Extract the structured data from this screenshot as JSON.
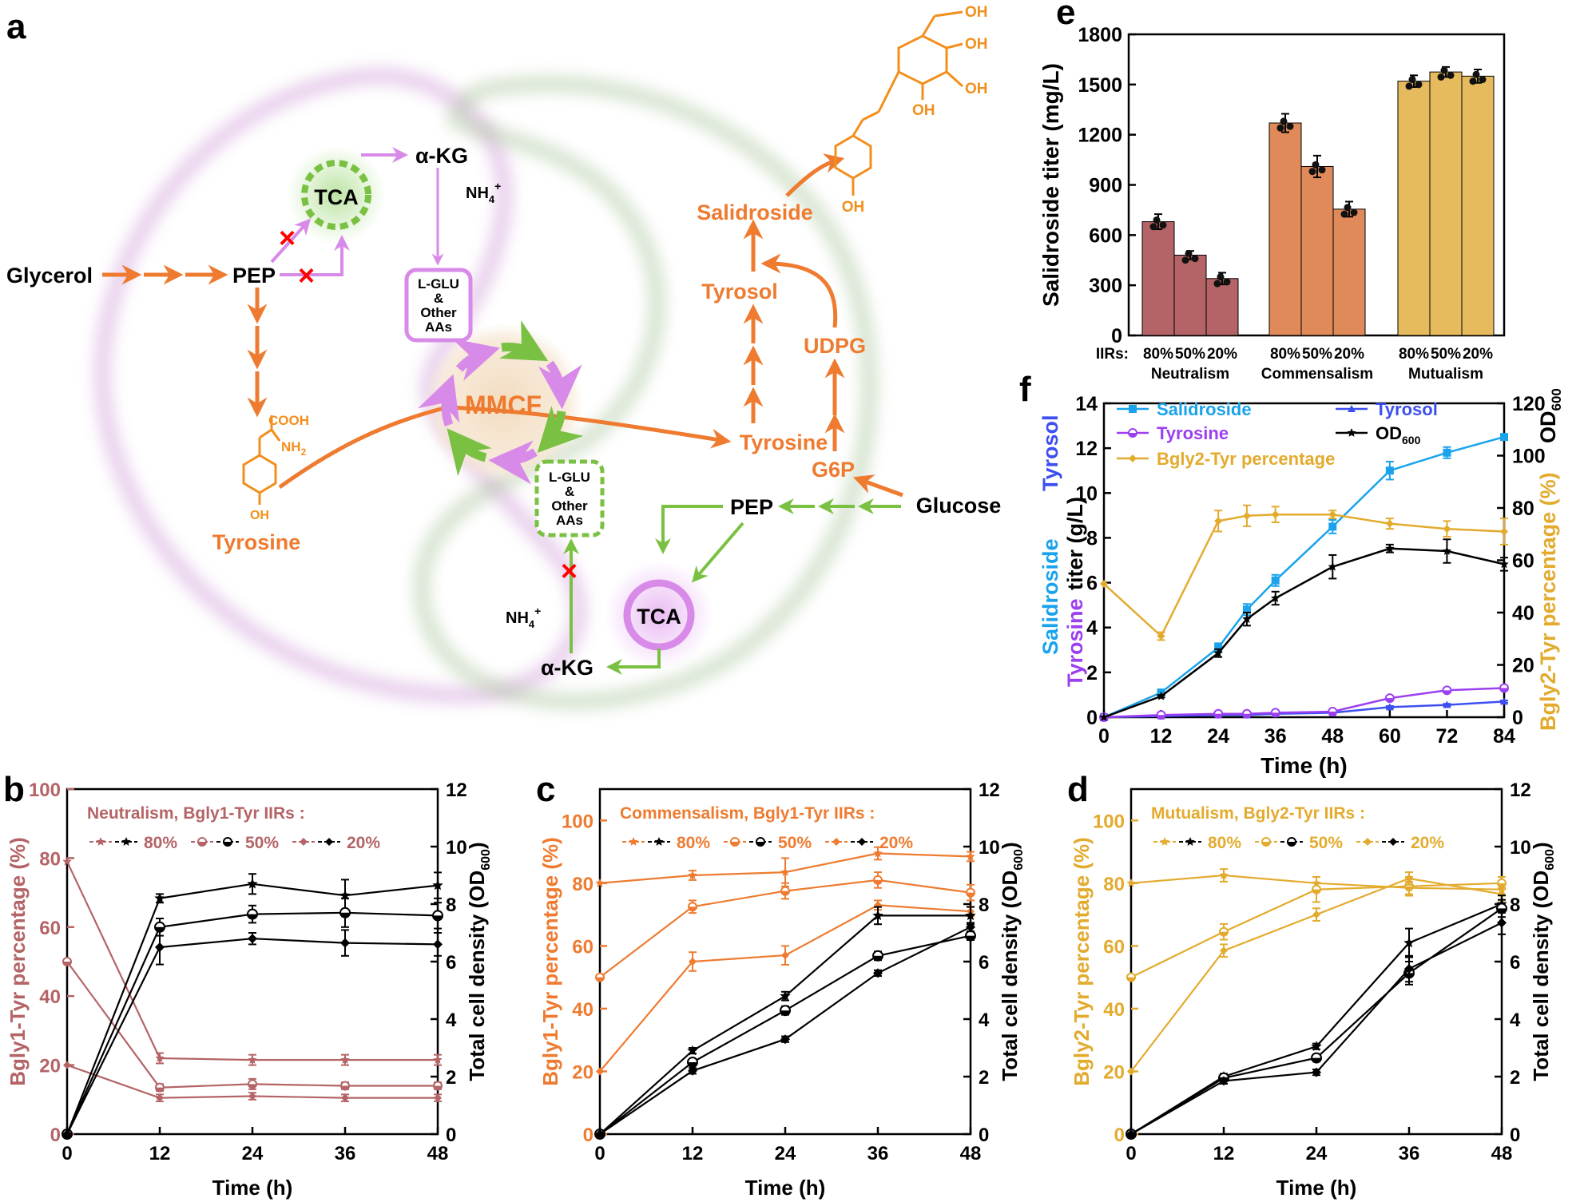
{
  "colors": {
    "orange": "#ee7b30",
    "orange_light": "#f28f1c",
    "green": "#7ac143",
    "pink": "#d88ae8",
    "rose": "#b46466",
    "gold": "#e3ab2e",
    "blue_sal": "#1aa3ec",
    "purple_tyr": "#9b3ff0",
    "blue_tyrosol": "#3d4ff0",
    "black": "#000000",
    "red_x": "#ff0000"
  },
  "panel_a": {
    "letter": "a",
    "glycerol": "Glycerol",
    "pep_left": "PEP",
    "tca_left": "TCA",
    "akg_top": "α-KG",
    "nh4_top": "NH",
    "nh4_sup": "4",
    "plus": "+",
    "lglu_top": [
      "L-GLU",
      "&",
      "Other",
      "AAs"
    ],
    "cooh": "COOH",
    "nh2": "NH",
    "nh2_sub": "2",
    "oh": "OH",
    "tyrosine_left": "Tyrosine",
    "mmcf": "MMCF",
    "tyrosine_right": "Tyrosine",
    "tyrosol": "Tyrosol",
    "salidroside": "Salidroside",
    "udpg": "UDPG",
    "g6p": "G6P",
    "glucose": "Glucose",
    "pep_right": "PEP",
    "tca_right": "TCA",
    "akg_bottom": "α-KG",
    "nh4_bottom": "NH",
    "lglu_bottom": [
      "L-GLU",
      "&",
      "Other",
      "AAs"
    ],
    "cross": "×"
  },
  "chart_data": [
    {
      "id": "e",
      "type": "bar",
      "letter": "e",
      "ylabel": "Salidroside titer (mg/L)",
      "ylim": [
        0,
        1800
      ],
      "yticks": [
        "0",
        "300",
        "600",
        "900",
        "1200",
        "1500",
        "1800"
      ],
      "iir_label": "IIRs:",
      "groups": [
        {
          "name": "Neutralism",
          "labels": [
            "80%",
            "50%",
            "20%"
          ],
          "values": [
            680,
            480,
            340
          ],
          "errors": [
            45,
            25,
            35
          ],
          "color": "#b46466"
        },
        {
          "name": "Commensalism",
          "labels": [
            "80%",
            "50%",
            "20%"
          ],
          "values": [
            1270,
            1010,
            755
          ],
          "errors": [
            55,
            65,
            45
          ],
          "color": "#e08a5a"
        },
        {
          "name": "Mutualism",
          "labels": [
            "80%",
            "50%",
            "20%"
          ],
          "values": [
            1520,
            1575,
            1550
          ],
          "errors": [
            35,
            30,
            40
          ],
          "color": "#e6bb5e"
        }
      ]
    },
    {
      "id": "f",
      "type": "line",
      "letter": "f",
      "xlabel": "Time (h)",
      "xlim": [
        0,
        84
      ],
      "xticks": [
        "0",
        "12",
        "24",
        "36",
        "48",
        "60",
        "72",
        "84"
      ],
      "ylim": [
        0,
        14
      ],
      "yticks": [
        "0",
        "2",
        "4",
        "6",
        "8",
        "10",
        "12",
        "14"
      ],
      "ylim2": [
        0,
        120
      ],
      "yticks2": [
        "0",
        "20",
        "40",
        "60",
        "80",
        "100",
        "120"
      ],
      "ylabel_parts": [
        "Salidroside",
        "Tyrosol",
        "Tyrosine",
        "titer (g/L)"
      ],
      "ylabel2": "Bgly2-Tyr percentage (%)",
      "ylabel2_od": "OD",
      "ylabel2_od_sub": "600",
      "legend": [
        "Salidroside",
        "Tyrosol",
        "Tyrosine",
        "OD",
        "600",
        "Bgly2-Tyr percentage"
      ],
      "x": [
        0,
        12,
        24,
        30,
        36,
        48,
        60,
        72,
        84
      ],
      "series": [
        {
          "name": "Salidroside",
          "axis": "left",
          "color": "#1aa3ec",
          "marker": "square",
          "values": [
            0,
            1.1,
            3.1,
            4.8,
            6.1,
            8.5,
            11.0,
            11.8,
            12.5
          ],
          "errors": [
            0,
            0.1,
            0.2,
            0.25,
            0.25,
            0.3,
            0.4,
            0.25,
            0.1
          ]
        },
        {
          "name": "Tyrosol",
          "axis": "left",
          "color": "#3d4ff0",
          "marker": "triangle",
          "values": [
            0,
            0.05,
            0.1,
            0.1,
            0.15,
            0.2,
            0.45,
            0.55,
            0.7
          ],
          "errors": [
            0,
            0,
            0,
            0,
            0,
            0,
            0.05,
            0.05,
            0.05
          ]
        },
        {
          "name": "Tyrosine",
          "axis": "left",
          "color": "#9b3ff0",
          "marker": "circle",
          "values": [
            0,
            0.1,
            0.15,
            0.15,
            0.2,
            0.25,
            0.85,
            1.2,
            1.3
          ],
          "errors": [
            0,
            0,
            0,
            0,
            0,
            0,
            0.05,
            0.05,
            0.05
          ]
        },
        {
          "name": "OD600",
          "axis": "right",
          "color": "#000000",
          "marker": "star",
          "values": [
            0,
            8,
            24.5,
            37.5,
            45.5,
            57.5,
            64.5,
            63.5,
            58.5
          ],
          "errors": [
            0,
            0.5,
            1.5,
            2.5,
            2.5,
            4.5,
            1.5,
            4.5,
            2.5
          ]
        },
        {
          "name": "Bgly2-Tyr percentage",
          "axis": "right",
          "color": "#e3ab2e",
          "marker": "diamond",
          "values": [
            51,
            31,
            75,
            77,
            77.5,
            77.5,
            74,
            72,
            71
          ],
          "errors": [
            0,
            1.5,
            4,
            4,
            3,
            1.5,
            2,
            3,
            5
          ]
        }
      ]
    },
    {
      "id": "b",
      "type": "line",
      "letter": "b",
      "title": "Neutralism, Bgly1-Tyr IIRs :",
      "legend_labels": [
        "80%",
        "50%",
        "20%"
      ],
      "color": "#b46466",
      "xlabel": "Time (h)",
      "x": [
        0,
        12,
        24,
        36,
        48
      ],
      "xticks": [
        "0",
        "12",
        "24",
        "36",
        "48"
      ],
      "ylim": [
        0,
        100
      ],
      "yticks": [
        "0",
        "20",
        "40",
        "60",
        "80",
        "100"
      ],
      "ylim2": [
        0,
        12
      ],
      "yticks2": [
        "0",
        "2",
        "4",
        "6",
        "8",
        "10",
        "12"
      ],
      "ylabel": "Bgly1-Tyr percentage (%)",
      "ylabel2": "Total cell density (OD",
      "ylabel2_sub": "600",
      "ylabel2_end": ")",
      "percentage": [
        {
          "name": "80%",
          "marker": "star",
          "values": [
            79,
            22,
            21.5,
            21.5,
            21.5
          ],
          "errors": [
            0,
            1.5,
            1.5,
            1.5,
            1.5
          ]
        },
        {
          "name": "50%",
          "marker": "circle",
          "values": [
            50,
            13.5,
            14.5,
            14,
            14
          ],
          "errors": [
            0,
            1,
            1.5,
            1,
            1
          ]
        },
        {
          "name": "20%",
          "marker": "diamond",
          "values": [
            20,
            10.5,
            11,
            10.5,
            10.5
          ],
          "errors": [
            0,
            1,
            1,
            1,
            1
          ]
        }
      ],
      "od": [
        {
          "name": "80%",
          "marker": "star",
          "values": [
            0,
            8.2,
            8.7,
            8.3,
            8.65
          ],
          "errors": [
            0,
            0.15,
            0.35,
            0.55,
            0.45
          ]
        },
        {
          "name": "50%",
          "marker": "circle",
          "values": [
            0,
            7.2,
            7.65,
            7.7,
            7.6
          ],
          "errors": [
            0,
            0.3,
            0.3,
            0.5,
            0.45
          ]
        },
        {
          "name": "20%",
          "marker": "diamond",
          "values": [
            0,
            6.5,
            6.8,
            6.65,
            6.6
          ],
          "errors": [
            0,
            0.6,
            0.2,
            0.45,
            0.4
          ]
        }
      ]
    },
    {
      "id": "c",
      "type": "line",
      "letter": "c",
      "title": "Commensalism, Bgly1-Tyr IIRs :",
      "legend_labels": [
        "80%",
        "50%",
        "20%"
      ],
      "color": "#ee7b30",
      "xlabel": "Time (h)",
      "x": [
        0,
        12,
        24,
        36,
        48
      ],
      "xticks": [
        "0",
        "12",
        "24",
        "36",
        "48"
      ],
      "ylim": [
        0,
        110
      ],
      "yticks": [
        "0",
        "20",
        "40",
        "60",
        "80",
        "100"
      ],
      "ylim2": [
        0,
        12
      ],
      "yticks2": [
        "0",
        "2",
        "4",
        "6",
        "8",
        "10",
        "12"
      ],
      "ylabel": "Bgly1-Tyr percentage (%)",
      "ylabel2": "Total cell density (OD",
      "ylabel2_sub": "600",
      "ylabel2_end": ")",
      "percentage": [
        {
          "name": "80%",
          "marker": "star",
          "values": [
            80,
            82.5,
            83.5,
            89.5,
            88.5
          ],
          "errors": [
            0,
            1.5,
            4.5,
            2,
            1.5
          ]
        },
        {
          "name": "50%",
          "marker": "circle",
          "values": [
            50,
            72.5,
            77.5,
            81,
            77
          ],
          "errors": [
            0,
            2,
            2.5,
            2.5,
            2.5
          ]
        },
        {
          "name": "20%",
          "marker": "diamond",
          "values": [
            20,
            55,
            57,
            73,
            71
          ],
          "errors": [
            0,
            3,
            3,
            1.5,
            1.5
          ]
        }
      ],
      "od": [
        {
          "name": "80%",
          "marker": "star",
          "values": [
            0,
            2.9,
            4.8,
            7.6,
            7.6
          ],
          "errors": [
            0,
            0.1,
            0.15,
            0.3,
            0.3
          ]
        },
        {
          "name": "50%",
          "marker": "circle",
          "values": [
            0,
            2.5,
            4.3,
            6.2,
            6.9
          ],
          "errors": [
            0,
            0.1,
            0.15,
            0.15,
            0.15
          ]
        },
        {
          "name": "20%",
          "marker": "diamond",
          "values": [
            0,
            2.2,
            3.3,
            5.6,
            7.2
          ],
          "errors": [
            0,
            0.1,
            0.1,
            0.1,
            0.15
          ]
        }
      ]
    },
    {
      "id": "d",
      "type": "line",
      "letter": "d",
      "title": "Mutualism, Bgly2-Tyr IIRs :",
      "legend_labels": [
        "80%",
        "50%",
        "20%"
      ],
      "color": "#e3ab2e",
      "xlabel": "Time (h)",
      "x": [
        0,
        12,
        24,
        36,
        48
      ],
      "xticks": [
        "0",
        "12",
        "24",
        "36",
        "48"
      ],
      "ylim": [
        0,
        110
      ],
      "yticks": [
        "0",
        "20",
        "40",
        "60",
        "80",
        "100"
      ],
      "ylim2": [
        0,
        12
      ],
      "yticks2": [
        "0",
        "2",
        "4",
        "6",
        "8",
        "10",
        "12"
      ],
      "ylabel": "Bgly2-Tyr percentage (%)",
      "ylabel2": "Total cell density (OD",
      "ylabel2_sub": "600",
      "ylabel2_end": ")",
      "percentage": [
        {
          "name": "80%",
          "marker": "star",
          "values": [
            80,
            82.5,
            80,
            78.5,
            78
          ],
          "errors": [
            0,
            2,
            2,
            2,
            2
          ]
        },
        {
          "name": "50%",
          "marker": "circle",
          "values": [
            50,
            64.5,
            78,
            79,
            80
          ],
          "errors": [
            0,
            2.5,
            4,
            3,
            2
          ]
        },
        {
          "name": "20%",
          "marker": "diamond",
          "values": [
            20,
            58.5,
            70,
            81.5,
            76.5
          ],
          "errors": [
            0,
            2,
            2,
            2,
            2
          ]
        }
      ],
      "od": [
        {
          "name": "80%",
          "marker": "star",
          "values": [
            0,
            2.0,
            3.05,
            6.65,
            8.0
          ],
          "errors": [
            0,
            0.1,
            0.1,
            0.5,
            0.3
          ]
        },
        {
          "name": "50%",
          "marker": "circle",
          "values": [
            0,
            1.95,
            2.65,
            5.6,
            7.85
          ],
          "errors": [
            0,
            0.1,
            0.1,
            0.4,
            0.3
          ]
        },
        {
          "name": "20%",
          "marker": "diamond",
          "values": [
            0,
            1.85,
            2.15,
            5.75,
            7.35
          ],
          "errors": [
            0,
            0.1,
            0.1,
            0.45,
            0.4
          ]
        }
      ]
    }
  ]
}
